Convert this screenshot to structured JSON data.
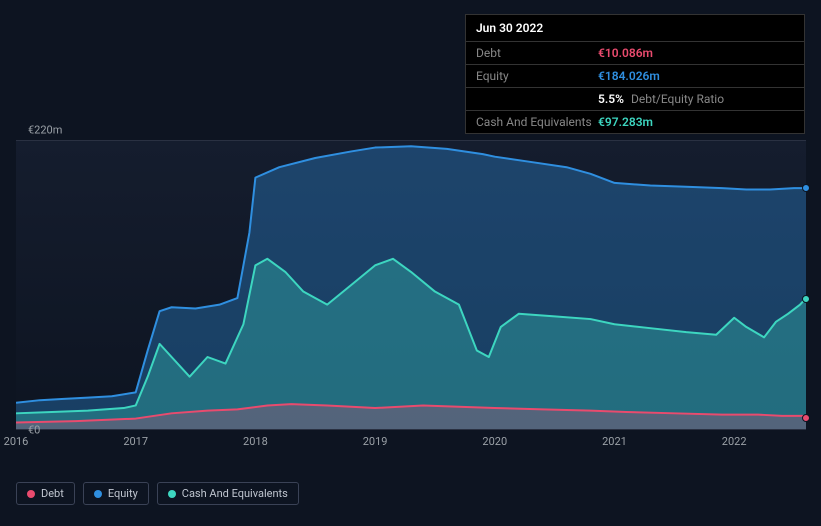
{
  "tooltip": {
    "date": "Jun 30 2022",
    "rows": [
      {
        "label": "Debt",
        "value": "€10.086m",
        "class": "debt"
      },
      {
        "label": "Equity",
        "value": "€184.026m",
        "class": "equity"
      },
      {
        "label": "",
        "value": "5.5%",
        "class": "ratio",
        "suffix": "Debt/Equity Ratio"
      },
      {
        "label": "Cash And Equivalents",
        "value": "€97.283m",
        "class": "cash"
      }
    ]
  },
  "chart": {
    "type": "area",
    "background": "#0d1421",
    "grid_color": "#2a3142",
    "ylim": [
      0,
      220
    ],
    "ylabels": [
      {
        "v": 220,
        "text": "€220m"
      },
      {
        "v": 0,
        "text": "€0"
      }
    ],
    "xdomain": [
      2016,
      2022.6
    ],
    "xticks": [
      2016,
      2017,
      2018,
      2019,
      2020,
      2021,
      2022
    ],
    "series": [
      {
        "name": "Equity",
        "color": "#2f8fe0",
        "fill": "rgba(47,143,224,0.35)",
        "line_width": 2,
        "data": [
          [
            2016.0,
            20
          ],
          [
            2016.2,
            22
          ],
          [
            2016.4,
            23
          ],
          [
            2016.6,
            24
          ],
          [
            2016.8,
            25
          ],
          [
            2017.0,
            28
          ],
          [
            2017.1,
            60
          ],
          [
            2017.2,
            90
          ],
          [
            2017.3,
            93
          ],
          [
            2017.5,
            92
          ],
          [
            2017.7,
            95
          ],
          [
            2017.85,
            100
          ],
          [
            2017.95,
            150
          ],
          [
            2018.0,
            192
          ],
          [
            2018.2,
            200
          ],
          [
            2018.5,
            207
          ],
          [
            2018.8,
            212
          ],
          [
            2019.0,
            215
          ],
          [
            2019.3,
            216
          ],
          [
            2019.6,
            214
          ],
          [
            2019.9,
            210
          ],
          [
            2020.0,
            208
          ],
          [
            2020.3,
            204
          ],
          [
            2020.6,
            200
          ],
          [
            2020.8,
            195
          ],
          [
            2021.0,
            188
          ],
          [
            2021.3,
            186
          ],
          [
            2021.6,
            185
          ],
          [
            2021.9,
            184
          ],
          [
            2022.1,
            183
          ],
          [
            2022.3,
            183
          ],
          [
            2022.5,
            184
          ],
          [
            2022.6,
            184
          ]
        ]
      },
      {
        "name": "Cash And Equivalents",
        "color": "#3dd6c0",
        "fill": "rgba(61,214,192,0.30)",
        "line_width": 2,
        "data": [
          [
            2016.0,
            12
          ],
          [
            2016.3,
            13
          ],
          [
            2016.6,
            14
          ],
          [
            2016.9,
            16
          ],
          [
            2017.0,
            18
          ],
          [
            2017.1,
            40
          ],
          [
            2017.2,
            65
          ],
          [
            2017.3,
            55
          ],
          [
            2017.45,
            40
          ],
          [
            2017.6,
            55
          ],
          [
            2017.75,
            50
          ],
          [
            2017.9,
            80
          ],
          [
            2018.0,
            125
          ],
          [
            2018.1,
            130
          ],
          [
            2018.25,
            120
          ],
          [
            2018.4,
            105
          ],
          [
            2018.6,
            95
          ],
          [
            2018.8,
            110
          ],
          [
            2019.0,
            125
          ],
          [
            2019.15,
            130
          ],
          [
            2019.3,
            120
          ],
          [
            2019.5,
            105
          ],
          [
            2019.7,
            95
          ],
          [
            2019.85,
            60
          ],
          [
            2019.95,
            55
          ],
          [
            2020.05,
            78
          ],
          [
            2020.2,
            88
          ],
          [
            2020.5,
            86
          ],
          [
            2020.8,
            84
          ],
          [
            2021.0,
            80
          ],
          [
            2021.3,
            77
          ],
          [
            2021.6,
            74
          ],
          [
            2021.85,
            72
          ],
          [
            2022.0,
            85
          ],
          [
            2022.1,
            78
          ],
          [
            2022.25,
            70
          ],
          [
            2022.35,
            82
          ],
          [
            2022.45,
            88
          ],
          [
            2022.55,
            95
          ],
          [
            2022.6,
            100
          ]
        ]
      },
      {
        "name": "Debt",
        "color": "#e94b6e",
        "fill": "rgba(233,75,110,0.25)",
        "line_width": 2,
        "data": [
          [
            2016.0,
            5
          ],
          [
            2016.5,
            6
          ],
          [
            2017.0,
            8
          ],
          [
            2017.3,
            12
          ],
          [
            2017.6,
            14
          ],
          [
            2017.85,
            15
          ],
          [
            2018.1,
            18
          ],
          [
            2018.3,
            19
          ],
          [
            2018.6,
            18
          ],
          [
            2019.0,
            16
          ],
          [
            2019.4,
            18
          ],
          [
            2019.7,
            17
          ],
          [
            2020.0,
            16
          ],
          [
            2020.4,
            15
          ],
          [
            2020.8,
            14
          ],
          [
            2021.1,
            13
          ],
          [
            2021.5,
            12
          ],
          [
            2021.9,
            11
          ],
          [
            2022.2,
            11
          ],
          [
            2022.4,
            10
          ],
          [
            2022.6,
            10
          ]
        ]
      }
    ],
    "end_markers": [
      {
        "series": "Equity",
        "color": "#2f8fe0",
        "value": 184
      },
      {
        "series": "Cash And Equivalents",
        "color": "#3dd6c0",
        "value": 100
      },
      {
        "series": "Debt",
        "color": "#e94b6e",
        "value": 10
      }
    ]
  },
  "legend": [
    {
      "label": "Debt",
      "color": "#e94b6e"
    },
    {
      "label": "Equity",
      "color": "#2f8fe0"
    },
    {
      "label": "Cash And Equivalents",
      "color": "#3dd6c0"
    }
  ]
}
